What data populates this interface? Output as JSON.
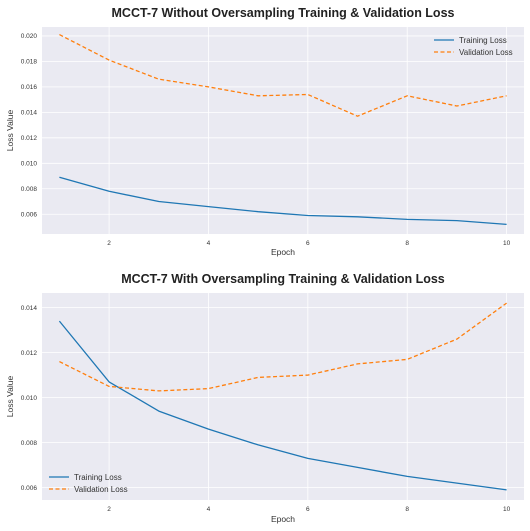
{
  "chart_data": [
    {
      "type": "line",
      "title": "MCCT-7 Without Oversampling Training & Validation Loss",
      "xlabel": "Epoch",
      "ylabel": "Loss Value",
      "x": [
        1,
        2,
        3,
        4,
        5,
        6,
        7,
        8,
        9,
        10
      ],
      "xlim": [
        0.65,
        10.35
      ],
      "ylim": [
        0.00445,
        0.0207
      ],
      "xticks": [
        2,
        4,
        6,
        8,
        10
      ],
      "yticks": [
        0.006,
        0.008,
        0.01,
        0.012,
        0.014,
        0.016,
        0.018,
        0.02
      ],
      "ytick_labels": [
        "0.006",
        "0.008",
        "0.010",
        "0.012",
        "0.014",
        "0.016",
        "0.018",
        "0.020"
      ],
      "grid": true,
      "legend_position": "top-right",
      "series": [
        {
          "name": "Training Loss",
          "color": "#1f77b4",
          "style": "solid",
          "values": [
            0.0089,
            0.0078,
            0.007,
            0.0066,
            0.0062,
            0.0059,
            0.0058,
            0.0056,
            0.0055,
            0.0052
          ]
        },
        {
          "name": "Validation Loss",
          "color": "#ff7f0e",
          "style": "dashed",
          "values": [
            0.0201,
            0.0181,
            0.0166,
            0.016,
            0.0153,
            0.0154,
            0.0137,
            0.0153,
            0.0145,
            0.0153
          ]
        }
      ]
    },
    {
      "type": "line",
      "title": "MCCT-7 With Oversampling Training & Validation Loss",
      "xlabel": "Epoch",
      "ylabel": "Loss Value",
      "x": [
        1,
        2,
        3,
        4,
        5,
        6,
        7,
        8,
        9,
        10
      ],
      "xlim": [
        0.65,
        10.35
      ],
      "ylim": [
        0.00545,
        0.01465
      ],
      "xticks": [
        2,
        4,
        6,
        8,
        10
      ],
      "yticks": [
        0.006,
        0.008,
        0.01,
        0.012,
        0.014
      ],
      "ytick_labels": [
        "0.006",
        "0.008",
        "0.010",
        "0.012",
        "0.014"
      ],
      "grid": true,
      "legend_position": "bottom-left",
      "series": [
        {
          "name": "Training Loss",
          "color": "#1f77b4",
          "style": "solid",
          "values": [
            0.0134,
            0.0107,
            0.0094,
            0.0086,
            0.0079,
            0.0073,
            0.0069,
            0.0065,
            0.0062,
            0.0059
          ]
        },
        {
          "name": "Validation Loss",
          "color": "#ff7f0e",
          "style": "dashed",
          "values": [
            0.0116,
            0.0105,
            0.0103,
            0.0104,
            0.0109,
            0.011,
            0.0115,
            0.0117,
            0.0126,
            0.0142
          ]
        }
      ]
    }
  ]
}
